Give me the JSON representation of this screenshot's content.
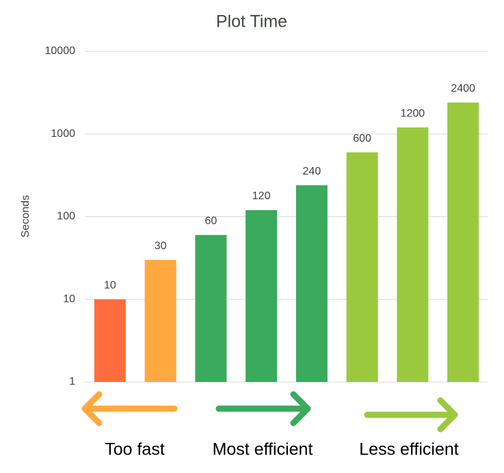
{
  "chart_data": {
    "type": "bar",
    "title": "Plot Time",
    "y_label": "Seconds",
    "categories": [
      null,
      null,
      null,
      null,
      null,
      null,
      null,
      null
    ],
    "values": [
      10,
      30,
      60,
      120,
      240,
      600,
      1200,
      2400
    ],
    "colors": [
      "#ff6d3f",
      "#ffa940",
      "#3aaa5c",
      "#3aaa5c",
      "#3aaa5c",
      "#9bc93e",
      "#9bc93e",
      "#9bc93e"
    ],
    "ylim": [
      1,
      10000
    ],
    "yticks": [
      1,
      10,
      100,
      1000,
      10000
    ],
    "log_scale": true,
    "grid": true,
    "annotations": [
      "Too fast",
      "Most efficient",
      "Less efficient"
    ]
  }
}
